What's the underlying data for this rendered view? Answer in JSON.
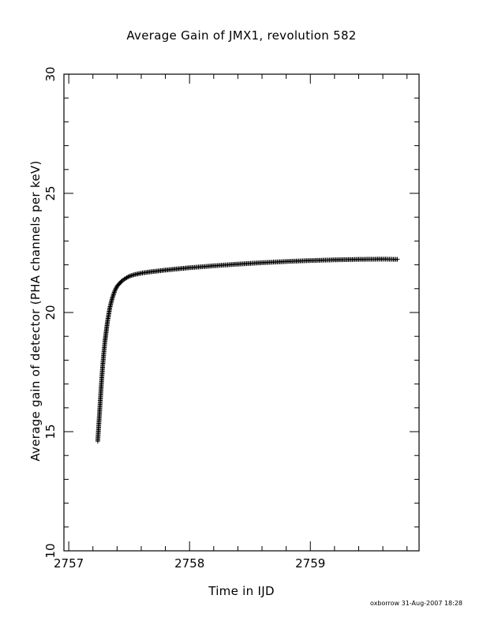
{
  "chart_data": {
    "type": "scatter",
    "title": "Average Gain of JMX1, revolution 582",
    "xlabel": "Time in IJD",
    "ylabel": "Average gain of detector (PHA channels per keV)",
    "xlim": [
      2756.96,
      2759.9
    ],
    "ylim": [
      10,
      30
    ],
    "x_ticks": [
      2757,
      2758,
      2759
    ],
    "y_ticks": [
      10,
      15,
      20,
      25,
      30
    ],
    "grid": false,
    "marker": "+",
    "series": [
      {
        "x": [
          2757.24,
          2757.25,
          2757.26,
          2757.27,
          2757.28,
          2757.29,
          2757.3,
          2757.31,
          2757.32,
          2757.33,
          2757.34,
          2757.35,
          2757.36,
          2757.37,
          2757.38,
          2757.39,
          2757.4,
          2757.42,
          2757.44,
          2757.46,
          2757.48,
          2757.5,
          2757.53,
          2757.56,
          2757.6,
          2757.65,
          2757.7,
          2757.8,
          2757.9,
          2758.0,
          2758.2,
          2758.4,
          2758.6,
          2758.8,
          2759.0,
          2759.2,
          2759.4,
          2759.6,
          2759.72
        ],
        "y": [
          14.6,
          15.4,
          16.2,
          17.0,
          17.7,
          18.3,
          18.8,
          19.2,
          19.6,
          19.9,
          20.2,
          20.4,
          20.6,
          20.75,
          20.9,
          21.0,
          21.1,
          21.22,
          21.32,
          21.4,
          21.46,
          21.52,
          21.57,
          21.61,
          21.65,
          21.69,
          21.72,
          21.78,
          21.83,
          21.88,
          21.96,
          22.03,
          22.09,
          22.14,
          22.18,
          22.21,
          22.23,
          22.24,
          22.23
        ]
      }
    ]
  },
  "footer": {
    "note": "oxborrow 31-Aug-2007 18:28"
  }
}
